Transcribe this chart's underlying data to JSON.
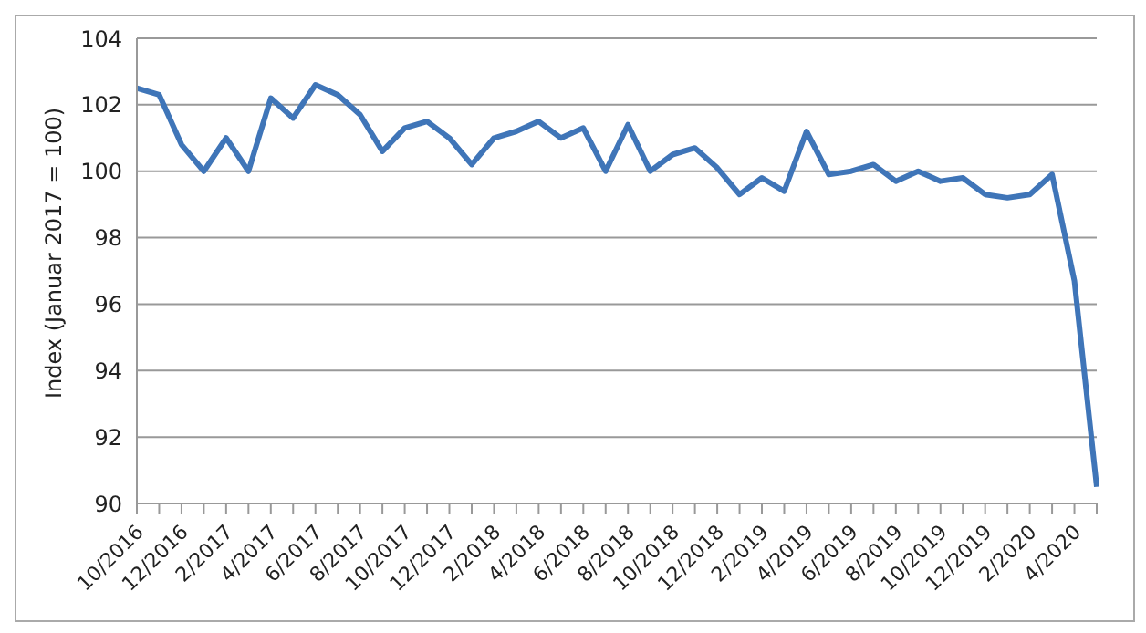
{
  "chart_data": {
    "type": "line",
    "ylabel": "Index (Januar 2017 = 100)",
    "categories": [
      "10/2016",
      null,
      "12/2016",
      null,
      "2/2017",
      null,
      "4/2017",
      null,
      "6/2017",
      null,
      "8/2017",
      null,
      "10/2017",
      null,
      "12/2017",
      null,
      "2/2018",
      null,
      "4/2018",
      null,
      "6/2018",
      null,
      "8/2018",
      null,
      "10/2018",
      null,
      "12/2018",
      null,
      "2/2019",
      null,
      "4/2019",
      null,
      "6/2019",
      null,
      "8/2019",
      null,
      "10/2019",
      null,
      "12/2019",
      null,
      "2/2020",
      null,
      "4/2020",
      null
    ],
    "series": [
      {
        "color": "#3f75b8",
        "values": [
          102.5,
          102.3,
          100.8,
          100.0,
          101.0,
          100.0,
          102.2,
          101.6,
          102.6,
          102.3,
          101.7,
          100.6,
          101.3,
          101.5,
          101.0,
          100.2,
          101.0,
          101.2,
          101.5,
          101.0,
          101.3,
          100.0,
          101.4,
          100.0,
          100.5,
          100.7,
          100.1,
          99.3,
          99.8,
          99.4,
          101.2,
          99.9,
          100.0,
          100.2,
          99.7,
          100.0,
          99.7,
          99.8,
          99.3,
          99.2,
          99.3,
          99.9,
          96.7,
          90.5
        ]
      }
    ],
    "ylim": [
      90,
      104
    ],
    "yticks": [
      90,
      92,
      94,
      96,
      98,
      100,
      102,
      104
    ],
    "grid": "y",
    "legend": false,
    "marker": "none",
    "line_style": "solid"
  }
}
